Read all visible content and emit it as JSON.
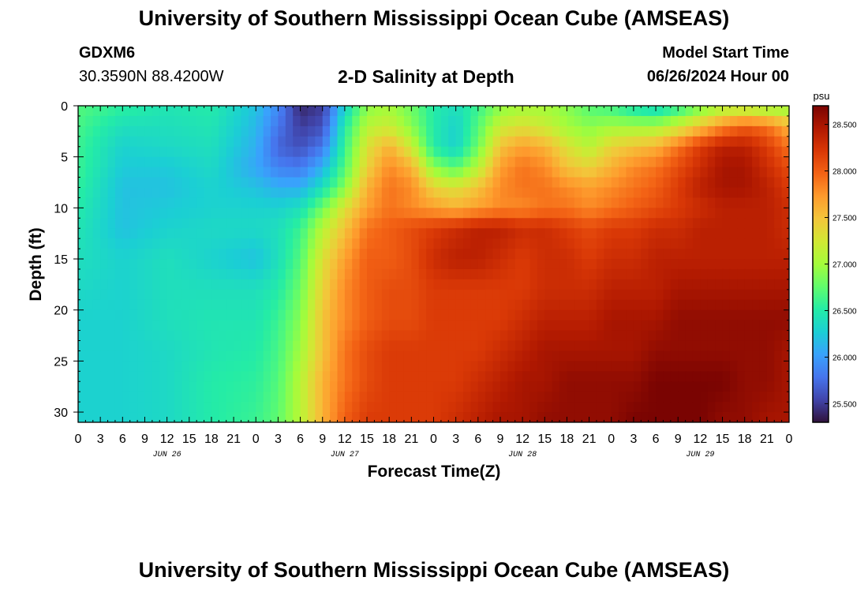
{
  "header": {
    "title": "University of Southern Mississippi Ocean Cube (AMSEAS)",
    "station_id": "GDXM6",
    "coordinates": "30.3590N  88.4200W",
    "subtitle": "2-D Salinity at Depth",
    "model_start_label": "Model Start Time",
    "model_start_value": "06/26/2024 Hour 00"
  },
  "footer": {
    "title": "University of Southern Mississippi Ocean Cube (AMSEAS)"
  },
  "chart_data": {
    "type": "heatmap",
    "title": "2-D Salinity at Depth",
    "xlabel": "Forecast Time(Z)",
    "ylabel": "Depth (ft)",
    "x_range_hours": [
      0,
      96
    ],
    "x_tick_labels": [
      "0",
      "3",
      "6",
      "9",
      "12",
      "15",
      "18",
      "21",
      "0",
      "3",
      "6",
      "9",
      "12",
      "15",
      "18",
      "21",
      "0",
      "3",
      "6",
      "9",
      "12",
      "15",
      "18",
      "21",
      "0",
      "3",
      "6",
      "9",
      "12",
      "15",
      "18",
      "21",
      "0"
    ],
    "day_labels": [
      "JUN 26",
      "JUN 27",
      "JUN 28",
      "JUN 29"
    ],
    "y_range": [
      0,
      31
    ],
    "y_ticks": [
      0,
      5,
      10,
      15,
      20,
      25,
      30
    ],
    "y_inverted": true,
    "colorbar": {
      "unit": "psu",
      "range": [
        25.3,
        28.7
      ],
      "tick_labels": [
        "25.500",
        "26.000",
        "26.500",
        "27.000",
        "27.500",
        "28.000",
        "28.500"
      ],
      "tick_values": [
        25.5,
        26.0,
        26.5,
        27.0,
        27.5,
        28.0,
        28.5
      ],
      "colors": [
        "#30123b",
        "#4145ab",
        "#4675ed",
        "#39a2fc",
        "#1bcfd4",
        "#24eca6",
        "#61fc6c",
        "#a4fc3b",
        "#d1e834",
        "#f3c63a",
        "#fe9b2d",
        "#f36315",
        "#d93806",
        "#b11901",
        "#7a0402"
      ]
    },
    "depths_ft": [
      0,
      2,
      4,
      6,
      8,
      10,
      12,
      15,
      18,
      21,
      24,
      27,
      31
    ],
    "times_hr": [
      0,
      6,
      12,
      18,
      24,
      27,
      30,
      33,
      36,
      39,
      42,
      45,
      48,
      51,
      54,
      57,
      60,
      63,
      66,
      69,
      72,
      75,
      78,
      81,
      84,
      87,
      90,
      93,
      96
    ],
    "values_psu": [
      [
        26.7,
        26.55,
        26.45,
        26.5,
        26.2,
        25.9,
        25.4,
        25.5,
        26.3,
        26.9,
        27.0,
        26.8,
        26.5,
        26.4,
        26.6,
        26.9,
        27.0,
        27.0,
        26.9,
        26.7,
        26.6,
        26.4,
        26.3,
        26.5,
        26.8,
        27.0,
        27.0,
        26.9,
        26.9
      ],
      [
        26.65,
        26.4,
        26.4,
        26.45,
        26.15,
        25.8,
        25.5,
        25.6,
        26.5,
        27.1,
        27.2,
        26.9,
        26.5,
        26.3,
        26.7,
        27.2,
        27.3,
        27.2,
        27.0,
        26.9,
        27.0,
        27.0,
        27.0,
        27.2,
        27.5,
        27.8,
        28.0,
        27.9,
        27.6
      ],
      [
        26.6,
        26.3,
        26.35,
        26.4,
        26.1,
        25.7,
        25.6,
        25.8,
        26.6,
        27.3,
        27.6,
        27.2,
        26.5,
        26.3,
        26.8,
        27.5,
        27.7,
        27.6,
        27.3,
        27.1,
        27.4,
        27.5,
        27.6,
        27.9,
        28.2,
        28.4,
        28.4,
        28.2,
        27.9
      ],
      [
        26.6,
        26.25,
        26.25,
        26.35,
        26.05,
        25.85,
        25.8,
        26.1,
        26.7,
        27.4,
        27.8,
        27.6,
        26.9,
        26.7,
        27.1,
        27.7,
        27.9,
        27.8,
        27.5,
        27.4,
        27.6,
        27.8,
        27.9,
        28.1,
        28.3,
        28.5,
        28.5,
        28.3,
        28.1
      ],
      [
        26.55,
        26.2,
        26.2,
        26.3,
        26.2,
        26.1,
        26.1,
        26.4,
        26.9,
        27.6,
        27.9,
        27.8,
        27.4,
        27.3,
        27.5,
        27.8,
        27.9,
        27.9,
        27.8,
        27.7,
        27.8,
        27.9,
        28.0,
        28.2,
        28.4,
        28.5,
        28.5,
        28.4,
        28.2
      ],
      [
        26.5,
        26.2,
        26.25,
        26.3,
        26.3,
        26.3,
        26.4,
        26.8,
        27.3,
        27.7,
        27.9,
        27.8,
        27.7,
        27.6,
        27.7,
        27.8,
        27.8,
        27.9,
        27.9,
        27.8,
        27.9,
        28.0,
        28.1,
        28.2,
        28.3,
        28.4,
        28.4,
        28.4,
        28.3
      ],
      [
        26.45,
        26.2,
        26.3,
        26.35,
        26.35,
        26.4,
        26.6,
        27.1,
        27.5,
        27.9,
        28.0,
        28.1,
        28.2,
        28.3,
        28.4,
        28.4,
        28.3,
        28.3,
        28.2,
        28.1,
        28.2,
        28.2,
        28.3,
        28.3,
        28.4,
        28.4,
        28.4,
        28.4,
        28.3
      ],
      [
        26.4,
        26.3,
        26.4,
        26.3,
        26.2,
        26.4,
        26.7,
        27.3,
        27.7,
        28.0,
        28.0,
        28.1,
        28.3,
        28.4,
        28.4,
        28.3,
        28.2,
        28.3,
        28.3,
        28.2,
        28.3,
        28.3,
        28.4,
        28.4,
        28.4,
        28.4,
        28.4,
        28.4,
        28.4
      ],
      [
        26.35,
        26.3,
        26.4,
        26.4,
        26.4,
        26.5,
        26.8,
        27.4,
        27.8,
        28.0,
        28.1,
        28.1,
        28.2,
        28.2,
        28.2,
        28.2,
        28.2,
        28.3,
        28.3,
        28.3,
        28.4,
        28.4,
        28.4,
        28.5,
        28.5,
        28.5,
        28.5,
        28.5,
        28.5
      ],
      [
        26.3,
        26.3,
        26.4,
        26.45,
        26.45,
        26.6,
        26.9,
        27.5,
        27.8,
        28.0,
        28.1,
        28.1,
        28.2,
        28.2,
        28.2,
        28.2,
        28.3,
        28.4,
        28.4,
        28.4,
        28.5,
        28.5,
        28.5,
        28.6,
        28.6,
        28.6,
        28.6,
        28.6,
        28.6
      ],
      [
        26.3,
        26.3,
        26.35,
        26.45,
        26.5,
        26.65,
        27.0,
        27.5,
        27.9,
        28.1,
        28.2,
        28.2,
        28.2,
        28.2,
        28.2,
        28.3,
        28.4,
        28.5,
        28.5,
        28.5,
        28.5,
        28.5,
        28.6,
        28.6,
        28.6,
        28.6,
        28.6,
        28.6,
        28.5
      ],
      [
        26.3,
        26.3,
        26.35,
        26.5,
        26.55,
        26.7,
        27.1,
        27.6,
        27.9,
        28.1,
        28.2,
        28.2,
        28.2,
        28.2,
        28.3,
        28.4,
        28.5,
        28.5,
        28.6,
        28.6,
        28.6,
        28.6,
        28.7,
        28.7,
        28.7,
        28.7,
        28.6,
        28.6,
        28.5
      ],
      [
        26.3,
        26.3,
        26.35,
        26.5,
        26.6,
        26.75,
        27.1,
        27.6,
        28.0,
        28.2,
        28.2,
        28.2,
        28.2,
        28.3,
        28.4,
        28.5,
        28.5,
        28.6,
        28.6,
        28.6,
        28.6,
        28.7,
        28.7,
        28.7,
        28.7,
        28.6,
        28.6,
        28.5,
        28.5
      ]
    ]
  }
}
